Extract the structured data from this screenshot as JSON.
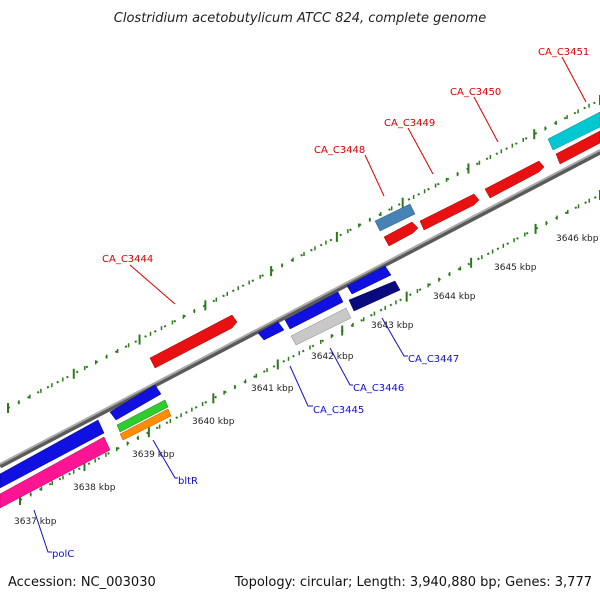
{
  "title": "Clostridium acetobutylicum ATCC 824, complete genome",
  "footer": {
    "accession": "Accession: NC_003030",
    "summary": "Topology: circular; Length: 3,940,880 bp; Genes: 3,777"
  },
  "colors": {
    "forward_label": "#d40000",
    "reverse_label": "#1010c8",
    "backbone": "#888888",
    "tick": "#2a7a1a",
    "callout_forward": "#d40000",
    "callout_reverse": "#1010c8"
  },
  "ticks": [
    {
      "label": "3637 kbp"
    },
    {
      "label": "3638 kbp"
    },
    {
      "label": "3639 kbp"
    },
    {
      "label": "3640 kbp"
    },
    {
      "label": "3641 kbp"
    },
    {
      "label": "3642 kbp"
    },
    {
      "label": "3643 kbp"
    },
    {
      "label": "3644 kbp"
    },
    {
      "label": "3645 kbp"
    },
    {
      "label": "3646 kbp"
    }
  ],
  "genes": [
    {
      "label": "CA_C3444",
      "color": "#e81010",
      "strand": "forward"
    },
    {
      "label": "CA_C3448",
      "color": "#4682b4",
      "strand": "forward"
    },
    {
      "label": "CA_C3449",
      "color": "#e81010",
      "strand": "forward"
    },
    {
      "label": "CA_C3450",
      "color": "#e81010",
      "strand": "forward"
    },
    {
      "label": "CA_C3451",
      "color": "#00c8d0",
      "strand": "forward"
    },
    {
      "label": "CA_C3445",
      "color": "#1010e0",
      "strand": "reverse"
    },
    {
      "label": "CA_C3446",
      "color": "#c8c8c8",
      "strand": "reverse"
    },
    {
      "label": "CA_C3447",
      "color": "#0a0a80",
      "strand": "reverse"
    },
    {
      "label": "bltR",
      "color": "#2ecc2e",
      "strand": "reverse"
    },
    {
      "label": "polC",
      "color": "#ff1493",
      "strand": "reverse"
    }
  ]
}
